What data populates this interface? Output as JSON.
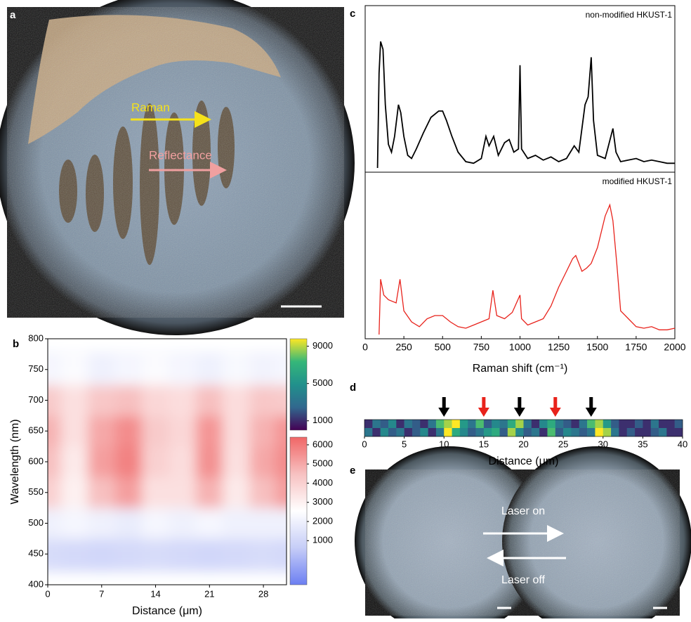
{
  "panel_labels": [
    "a",
    "b",
    "c",
    "d",
    "e"
  ],
  "photo_a": {
    "labels": [
      "Raman",
      "Reflectance"
    ]
  },
  "photo_e": {
    "labels": [
      "Laser on",
      "Laser off"
    ]
  },
  "chart_data": [
    {
      "type": "contour",
      "xlabel": "Distance (μm)",
      "ylabel": "Wavelength (nm)",
      "x": [
        0,
        3.5,
        7,
        10.5,
        14,
        17.5,
        21,
        24.5,
        28,
        31
      ],
      "y": [
        400,
        450,
        500,
        550,
        600,
        650,
        700,
        750,
        800
      ],
      "z": [
        [
          800,
          700,
          600,
          700,
          800,
          700,
          600,
          700,
          800,
          700
        ],
        [
          1200,
          1100,
          1000,
          1100,
          1200,
          1100,
          1000,
          1100,
          1200,
          1100
        ],
        [
          2000,
          2200,
          2000,
          1800,
          2200,
          2000,
          2200,
          2000,
          2000,
          2000
        ],
        [
          4000,
          3000,
          4500,
          5200,
          3500,
          3500,
          4800,
          3200,
          4500,
          5200
        ],
        [
          4500,
          3200,
          5200,
          5800,
          4000,
          3600,
          5500,
          3500,
          5000,
          5600
        ],
        [
          4800,
          3500,
          5000,
          5600,
          4200,
          3800,
          5400,
          3600,
          4800,
          5400
        ],
        [
          4200,
          3500,
          4300,
          4500,
          3800,
          3600,
          4500,
          3600,
          4300,
          4200
        ],
        [
          2200,
          2400,
          2000,
          2200,
          2400,
          2200,
          2000,
          2300,
          2100,
          2200
        ],
        [
          1800,
          2000,
          1800,
          1900,
          2000,
          1800,
          1800,
          2000,
          1800,
          1800
        ]
      ],
      "xlim": [
        0,
        31
      ],
      "ylim": [
        400,
        800
      ],
      "xticks": [
        0,
        7,
        14,
        21,
        28
      ],
      "yticks": [
        400,
        450,
        500,
        550,
        600,
        650,
        700,
        750,
        800
      ],
      "colorbars": [
        {
          "lim": [
            0,
            9800
          ],
          "ticks": [
            1000,
            5000,
            9000
          ],
          "colors": [
            "#440154",
            "#31688e",
            "#21918c",
            "#35b779",
            "#fde725"
          ]
        },
        {
          "lim": [
            -1300,
            6400
          ],
          "ticks": [
            1000,
            2000,
            3000,
            4000,
            5000,
            6000
          ],
          "colors": [
            "#6c7ff2",
            "#c6cdf7",
            "#ffffff",
            "#f7c1c1",
            "#f06666"
          ]
        }
      ]
    },
    {
      "type": "line",
      "xlabel": "Raman shift (cm⁻¹)",
      "xlim": [
        0,
        2000
      ],
      "ylim": [
        0,
        100
      ],
      "xticks": [
        0,
        250,
        500,
        750,
        1000,
        1250,
        1500,
        1750,
        2000
      ],
      "series": [
        {
          "name": "non-modified HKUST-1",
          "color": "#000000",
          "x": [
            80,
            90,
            100,
            115,
            130,
            150,
            170,
            190,
            215,
            230,
            250,
            275,
            300,
            330,
            375,
            425,
            475,
            500,
            525,
            560,
            600,
            650,
            700,
            750,
            780,
            800,
            830,
            860,
            900,
            930,
            960,
            990,
            1000,
            1010,
            1050,
            1100,
            1150,
            1200,
            1250,
            1300,
            1350,
            1380,
            1420,
            1440,
            1460,
            1475,
            1500,
            1550,
            1600,
            1620,
            1650,
            1700,
            1750,
            1800,
            1850,
            1900,
            1950,
            2000
          ],
          "values": [
            0,
            60,
            80,
            75,
            40,
            15,
            10,
            20,
            40,
            35,
            20,
            8,
            6,
            12,
            22,
            32,
            36,
            36,
            30,
            20,
            10,
            4,
            3,
            6,
            20,
            14,
            20,
            8,
            16,
            18,
            10,
            12,
            65,
            12,
            6,
            8,
            5,
            7,
            4,
            6,
            14,
            10,
            40,
            45,
            70,
            30,
            8,
            6,
            25,
            10,
            4,
            5,
            6,
            4,
            5,
            4,
            3,
            3
          ]
        },
        {
          "name": "modified HKUST-1",
          "color": "#e8221b",
          "x": [
            90,
            100,
            120,
            150,
            200,
            225,
            250,
            300,
            350,
            400,
            450,
            500,
            550,
            600,
            650,
            700,
            750,
            800,
            825,
            850,
            900,
            950,
            1000,
            1010,
            1050,
            1100,
            1150,
            1200,
            1250,
            1300,
            1340,
            1360,
            1400,
            1430,
            1460,
            1500,
            1550,
            1580,
            1600,
            1625,
            1650,
            1700,
            1750,
            1800,
            1850,
            1900,
            1950,
            2000
          ],
          "values": [
            0,
            35,
            25,
            22,
            20,
            35,
            15,
            8,
            5,
            10,
            12,
            12,
            8,
            5,
            4,
            6,
            8,
            10,
            28,
            12,
            10,
            14,
            25,
            10,
            6,
            8,
            10,
            18,
            30,
            40,
            48,
            50,
            40,
            42,
            45,
            55,
            75,
            82,
            72,
            45,
            15,
            10,
            5,
            4,
            5,
            3,
            3,
            4
          ]
        }
      ]
    },
    {
      "type": "heatmap",
      "xlabel": "Distance (μm)",
      "xlim": [
        0,
        40
      ],
      "xticks": [
        0,
        5,
        10,
        15,
        20,
        25,
        30,
        35,
        40
      ],
      "lim": [
        0,
        9
      ],
      "colors": [
        "#440154",
        "#31688e",
        "#21918c",
        "#35b779",
        "#fde725"
      ],
      "values": [
        [
          1,
          3,
          2,
          4,
          1,
          3,
          2,
          1,
          3,
          7,
          8,
          9,
          5,
          3,
          7,
          2,
          4,
          3,
          6,
          8,
          3,
          1,
          4,
          6,
          3,
          2,
          1,
          3,
          7,
          8,
          5,
          2,
          1,
          1,
          2,
          1,
          3,
          1,
          1,
          2
        ],
        [
          3,
          1,
          4,
          2,
          3,
          1,
          2,
          4,
          1,
          3,
          9,
          6,
          4,
          2,
          3,
          5,
          6,
          2,
          8,
          4,
          2,
          3,
          1,
          7,
          2,
          4,
          3,
          2,
          3,
          9,
          8,
          3,
          1,
          2,
          1,
          1,
          2,
          3,
          1,
          1
        ]
      ],
      "arrows": [
        {
          "x": 10,
          "color": "#000000"
        },
        {
          "x": 15,
          "color": "#e8221b"
        },
        {
          "x": 19.5,
          "color": "#000000"
        },
        {
          "x": 24,
          "color": "#e8221b"
        },
        {
          "x": 28.5,
          "color": "#000000"
        }
      ]
    }
  ]
}
